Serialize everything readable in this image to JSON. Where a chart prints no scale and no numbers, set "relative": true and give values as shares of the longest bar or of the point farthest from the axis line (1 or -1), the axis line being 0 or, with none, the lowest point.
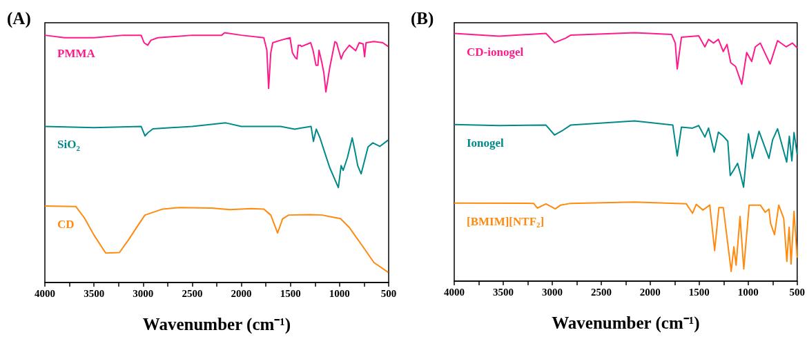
{
  "chart_data": [
    {
      "type": "line",
      "relative": true,
      "annotations": [
        "(A)"
      ],
      "xlabel": "Wavenumber (cm⁻¹)",
      "xlim": [
        4000,
        500
      ],
      "xticks": [
        4000,
        {
          "value": 3750,
          "label": null
        },
        3500,
        {
          "value": 3250,
          "label": null
        },
        3000,
        {
          "value": 2750,
          "label": null
        },
        2500,
        {
          "value": 2250,
          "label": null
        },
        2000,
        {
          "value": 1750,
          "label": null
        },
        1500,
        {
          "value": 1250,
          "label": null
        },
        1000,
        {
          "value": 750,
          "label": null
        },
        500
      ],
      "series": [
        {
          "name": "PMMA",
          "color": "#ff1a8c",
          "x": [
            4000,
            3800,
            3500,
            3200,
            3020,
            2990,
            2953,
            2920,
            2850,
            2500,
            2200,
            2170,
            2000,
            1771,
            1740,
            1722,
            1700,
            1680,
            1600,
            1504,
            1480,
            1450,
            1434,
            1420,
            1400,
            1385,
            1294,
            1270,
            1240,
            1220,
            1209,
            1180,
            1160,
            1139,
            1100,
            1047,
            1030,
            984,
            960,
            900,
            836,
            800,
            760,
            745,
            730,
            650,
            560,
            506
          ],
          "values": [
            0.99,
            0.98,
            0.98,
            0.99,
            0.99,
            0.96,
            0.95,
            0.97,
            0.98,
            0.99,
            0.99,
            1.0,
            0.99,
            0.98,
            0.93,
            0.777,
            0.92,
            0.96,
            0.97,
            0.98,
            0.92,
            0.9,
            0.895,
            0.95,
            0.95,
            0.945,
            0.96,
            0.93,
            0.87,
            0.87,
            0.93,
            0.88,
            0.84,
            0.763,
            0.86,
            0.964,
            0.96,
            0.895,
            0.92,
            0.95,
            0.928,
            0.96,
            0.955,
            0.904,
            0.96,
            0.965,
            0.96,
            0.945
          ]
        },
        {
          "name": "SiO$_{2}$",
          "color": "#00898a",
          "x": [
            4000,
            3500,
            3020,
            2981,
            2950,
            2900,
            2500,
            2158,
            2000,
            1600,
            1456,
            1400,
            1290,
            1266,
            1237,
            1200,
            1153,
            1100,
            1012,
            984,
            963,
            920,
            871,
            840,
            815,
            780,
            710,
            661,
            590,
            506
          ],
          "values": [
            0.625,
            0.62,
            0.625,
            0.587,
            0.6,
            0.615,
            0.625,
            0.639,
            0.625,
            0.625,
            0.614,
            0.618,
            0.625,
            0.565,
            0.614,
            0.58,
            0.523,
            0.46,
            0.38,
            0.468,
            0.449,
            0.5,
            0.579,
            0.52,
            0.468,
            0.435,
            0.543,
            0.559,
            0.545,
            0.57
          ]
        },
        {
          "name": "CD",
          "color": "#ff8a0d",
          "x": [
            4000,
            3684,
            3600,
            3500,
            3381,
            3241,
            3150,
            3050,
            2981,
            2800,
            2629,
            2300,
            2116,
            1900,
            1771,
            1700,
            1631,
            1580,
            1518,
            1300,
            1174,
            1104,
            991,
            900,
            752,
            650,
            506
          ],
          "values": [
            0.306,
            0.304,
            0.26,
            0.19,
            0.118,
            0.12,
            0.17,
            0.23,
            0.27,
            0.294,
            0.3,
            0.298,
            0.292,
            0.296,
            0.294,
            0.27,
            0.198,
            0.255,
            0.27,
            0.272,
            0.27,
            0.264,
            0.256,
            0.22,
            0.138,
            0.08,
            0.041
          ]
        }
      ]
    },
    {
      "type": "line",
      "relative": true,
      "annotations": [
        "(B)"
      ],
      "xlabel": "Wavenumber (cm⁻¹)",
      "xlim": [
        4000,
        500
      ],
      "xticks": [
        4000,
        {
          "value": 3750,
          "label": null
        },
        3500,
        {
          "value": 3250,
          "label": null
        },
        3000,
        {
          "value": 2750,
          "label": null
        },
        2500,
        {
          "value": 2250,
          "label": null
        },
        2000,
        {
          "value": 1750,
          "label": null
        },
        1500,
        {
          "value": 1250,
          "label": null
        },
        1000,
        {
          "value": 750,
          "label": null
        },
        500
      ],
      "series": [
        {
          "name": "CD-ionogel",
          "color": "#ff1a8c",
          "x": [
            4000,
            3542,
            3064,
            2976,
            2863,
            2813,
            2159,
            1782,
            1744,
            1724,
            1681,
            1505,
            1442,
            1404,
            1354,
            1304,
            1254,
            1216,
            1178,
            1128,
            1065,
            1015,
            964,
            927,
            876,
            776,
            700,
            612,
            549,
            500
          ],
          "values": [
            0.997,
            0.986,
            0.997,
            0.96,
            0.978,
            0.99,
            1.0,
            0.993,
            0.958,
            0.854,
            0.982,
            0.987,
            0.943,
            0.973,
            0.958,
            0.973,
            0.924,
            0.953,
            0.879,
            0.864,
            0.792,
            0.92,
            0.884,
            0.943,
            0.958,
            0.874,
            0.968,
            0.943,
            0.958,
            0.939
          ]
        },
        {
          "name": "Ionogel",
          "color": "#00898a",
          "x": [
            4000,
            3542,
            3064,
            2976,
            2888,
            2813,
            2159,
            1769,
            1724,
            1681,
            1568,
            1505,
            1442,
            1404,
            1347,
            1304,
            1254,
            1208,
            1183,
            1153,
            1108,
            1078,
            1047,
            997,
            957,
            889,
            788,
            751,
            700,
            607,
            580,
            554,
            532,
            500
          ],
          "values": [
            0.63,
            0.626,
            0.628,
            0.588,
            0.608,
            0.628,
            0.645,
            0.628,
            0.504,
            0.62,
            0.616,
            0.626,
            0.58,
            0.616,
            0.519,
            0.6,
            0.583,
            0.563,
            0.425,
            0.444,
            0.474,
            0.43,
            0.378,
            0.593,
            0.494,
            0.603,
            0.494,
            0.568,
            0.613,
            0.479,
            0.583,
            0.484,
            0.598,
            0.51
          ]
        },
        {
          "name": "[BMIM][NTF$_{2}$]",
          "color": "#ff8a0d",
          "x": [
            4000,
            3190,
            3152,
            3064,
            2969,
            2914,
            2813,
            2159,
            1631,
            1568,
            1530,
            1462,
            1392,
            1342,
            1299,
            1254,
            1173,
            1146,
            1123,
            1083,
            1045,
            990,
            876,
            826,
            788,
            771,
            731,
            688,
            637,
            605,
            582,
            562,
            532,
            500
          ],
          "values": [
            0.314,
            0.313,
            0.294,
            0.311,
            0.291,
            0.306,
            0.313,
            0.318,
            0.311,
            0.273,
            0.309,
            0.286,
            0.306,
            0.123,
            0.296,
            0.296,
            0.039,
            0.138,
            0.064,
            0.261,
            0.049,
            0.306,
            0.306,
            0.277,
            0.29,
            0.232,
            0.187,
            0.306,
            0.252,
            0.079,
            0.217,
            0.069,
            0.281,
            0.094
          ]
        }
      ]
    }
  ]
}
